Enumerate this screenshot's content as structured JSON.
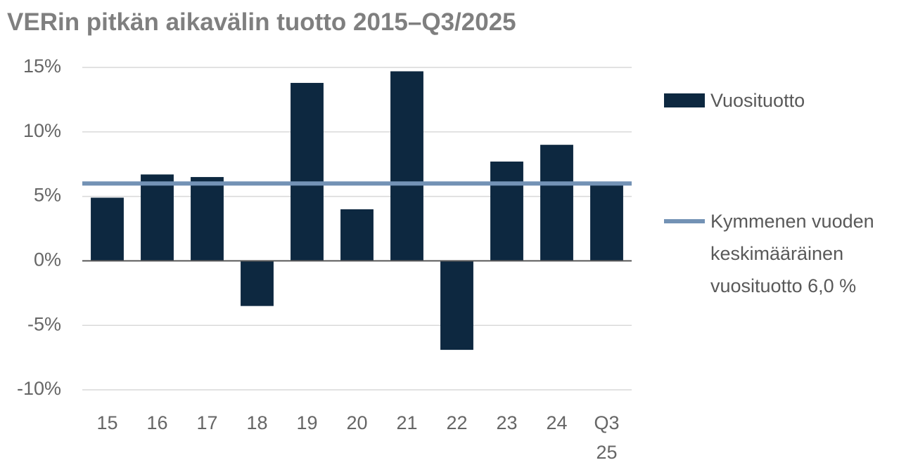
{
  "chart_data": {
    "type": "bar",
    "title": "VERin pitkän aikavälin tuotto 2015–Q3/2025",
    "categories": [
      "15",
      "16",
      "17",
      "18",
      "19",
      "20",
      "21",
      "22",
      "23",
      "24",
      "Q3 25"
    ],
    "series": [
      {
        "name": "Vuosituotto",
        "color": "#0d2840",
        "values": [
          4.9,
          6.7,
          6.5,
          -3.5,
          13.8,
          4.0,
          14.7,
          -6.9,
          7.7,
          9.0,
          6.0
        ]
      }
    ],
    "reference_line": {
      "name": "Kymmenen vuoden keskimääräinen vuosituotto 6,0 %",
      "value": 6.0,
      "color": "#7392b5"
    },
    "ylim": [
      -10,
      15
    ],
    "yticks": [
      {
        "value": -10,
        "label": "-10%"
      },
      {
        "value": -5,
        "label": "-5%"
      },
      {
        "value": 0,
        "label": "0%"
      },
      {
        "value": 5,
        "label": "5%"
      },
      {
        "value": 10,
        "label": "10%"
      },
      {
        "value": 15,
        "label": "15%"
      }
    ],
    "grid": true,
    "legend": "right"
  }
}
